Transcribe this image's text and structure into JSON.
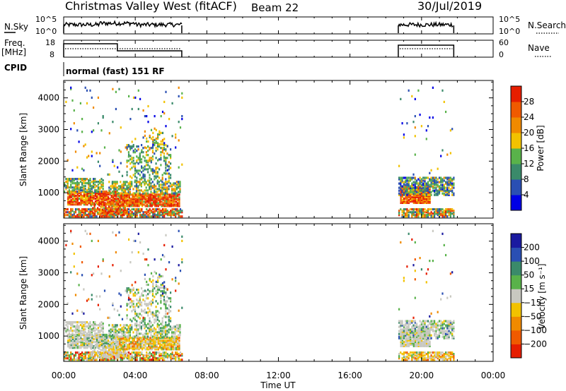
{
  "header": {
    "title": "Christmas Valley West (fitACF)",
    "beam": "Beam 22",
    "date": "30/Jul/2019"
  },
  "aux_panels": {
    "nsky_label": "N.Sky",
    "nsky_ticks": [
      "10^5",
      "10^0"
    ],
    "nsearch_label": "N.Search",
    "nsearch_ticks": [
      "10^5",
      "10^0"
    ],
    "freq_label_line1": "Freq.",
    "freq_label_line2": "[MHz]",
    "freq_ticks": [
      "18",
      "8"
    ],
    "nave_label": "Nave",
    "nave_ticks": [
      "60",
      "0"
    ],
    "cpid_label": "CPID",
    "cpid_text": "normal (fast) 151 RF"
  },
  "colors": {
    "power": [
      "#0000e6",
      "#2a4fb3",
      "#3a8a6a",
      "#59b24a",
      "#f2c200",
      "#f08a00",
      "#f05a00",
      "#e61e00"
    ],
    "velocity": [
      "#e61e00",
      "#f05a00",
      "#f08a00",
      "#f2c200",
      "#c8c8c0",
      "#59b24a",
      "#3a8a6a",
      "#2a4fb3",
      "#1a1aa0"
    ]
  },
  "chart_data": [
    {
      "type": "heatmap",
      "title": "",
      "ylabel": "Slant Range [km]",
      "xlabel": "",
      "xlim": [
        0,
        24
      ],
      "ylim": [
        200,
        4550
      ],
      "x_ticks": [
        "00:00",
        "04:00",
        "08:00",
        "12:00",
        "16:00",
        "20:00",
        "00:00"
      ],
      "y_ticks": [
        "1000",
        "2000",
        "3000",
        "4000"
      ],
      "colorbar": {
        "label": "Power [dB]",
        "ticks": [
          "28",
          "24",
          "20",
          "16",
          "12",
          "8",
          "4"
        ],
        "range": [
          0,
          30
        ]
      },
      "data_intervals_hours": [
        [
          0.0,
          6.6
        ],
        [
          18.7,
          21.8
        ]
      ]
    },
    {
      "type": "heatmap",
      "title": "",
      "ylabel": "Slant Range [km]",
      "xlabel": "Time UT",
      "xlim": [
        0,
        24
      ],
      "ylim": [
        200,
        4550
      ],
      "x_ticks": [
        "00:00",
        "04:00",
        "08:00",
        "12:00",
        "16:00",
        "20:00",
        "00:00"
      ],
      "y_ticks": [
        "1000",
        "2000",
        "3000",
        "4000"
      ],
      "colorbar": {
        "label": "Velocity [m s⁻¹]",
        "ticks": [
          "200",
          "100",
          "50",
          "15",
          "−15",
          "−50",
          "−100",
          "−200"
        ]
      },
      "data_intervals_hours": [
        [
          0.0,
          6.6
        ],
        [
          18.7,
          21.8
        ]
      ]
    }
  ]
}
